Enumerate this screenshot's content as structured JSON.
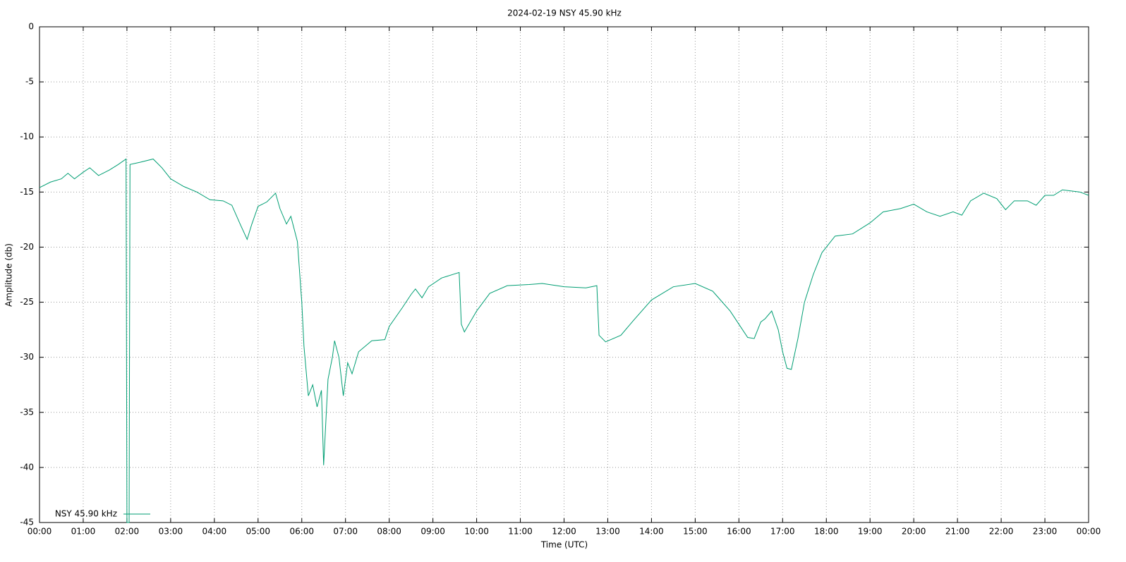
{
  "chart_data": {
    "type": "line",
    "title": "2024-02-19 NSY 45.90 kHz",
    "xlabel": "Time (UTC)",
    "ylabel": "Amplitude (db)",
    "x": [
      0.0,
      0.25,
      0.5,
      0.65,
      0.8,
      1.0,
      1.15,
      1.35,
      1.6,
      1.8,
      1.98,
      2.0,
      2.05,
      2.07,
      2.3,
      2.6,
      2.8,
      3.0,
      3.3,
      3.6,
      3.9,
      4.2,
      4.4,
      4.6,
      4.75,
      4.85,
      5.0,
      5.2,
      5.4,
      5.5,
      5.65,
      5.75,
      5.9,
      6.0,
      6.05,
      6.15,
      6.25,
      6.35,
      6.45,
      6.5,
      6.6,
      6.7,
      6.75,
      6.85,
      6.95,
      7.05,
      7.15,
      7.3,
      7.6,
      7.9,
      8.0,
      8.3,
      8.5,
      8.6,
      8.75,
      8.9,
      9.2,
      9.6,
      9.65,
      9.72,
      10.0,
      10.3,
      10.7,
      11.2,
      11.5,
      12.0,
      12.5,
      12.75,
      12.8,
      12.95,
      13.3,
      13.6,
      14.0,
      14.5,
      15.0,
      15.4,
      15.8,
      16.0,
      16.2,
      16.35,
      16.5,
      16.6,
      16.75,
      16.9,
      17.0,
      17.1,
      17.2,
      17.35,
      17.5,
      17.7,
      17.9,
      18.2,
      18.6,
      19.0,
      19.3,
      19.7,
      20.0,
      20.3,
      20.6,
      20.9,
      21.1,
      21.3,
      21.6,
      21.9,
      22.1,
      22.3,
      22.6,
      22.8,
      23.0,
      23.2,
      23.4,
      23.8,
      24.0
    ],
    "series": [
      {
        "name": "NSY 45.90 kHz",
        "color": "#009e73",
        "values": [
          -14.6,
          -14.1,
          -13.8,
          -13.3,
          -13.8,
          -13.2,
          -12.8,
          -13.5,
          -13.0,
          -12.5,
          -12.0,
          -45,
          -45,
          -12.5,
          -12.3,
          -12.0,
          -12.8,
          -13.8,
          -14.5,
          -15.0,
          -15.7,
          -15.8,
          -16.2,
          -18.0,
          -19.3,
          -18.0,
          -16.3,
          -15.9,
          -15.1,
          -16.5,
          -17.9,
          -17.2,
          -19.5,
          -25,
          -29,
          -33.5,
          -32.5,
          -34.5,
          -33,
          -39.8,
          -32,
          -30,
          -28.5,
          -30,
          -33.5,
          -30.5,
          -31.5,
          -29.5,
          -28.5,
          -28.4,
          -27.2,
          -25.5,
          -24.3,
          -23.8,
          -24.6,
          -23.6,
          -22.8,
          -22.3,
          -27.0,
          -27.7,
          -25.8,
          -24.2,
          -23.5,
          -23.4,
          -23.3,
          -23.6,
          -23.7,
          -23.5,
          -28.0,
          -28.6,
          -28.0,
          -26.6,
          -24.8,
          -23.6,
          -23.3,
          -24.0,
          -25.8,
          -27.0,
          -28.2,
          -28.3,
          -26.8,
          -26.5,
          -25.8,
          -27.5,
          -29.5,
          -31.0,
          -31.1,
          -28.3,
          -25.0,
          -22.5,
          -20.5,
          -19.0,
          -18.8,
          -17.8,
          -16.8,
          -16.5,
          -16.1,
          -16.8,
          -17.2,
          -16.8,
          -17.1,
          -15.8,
          -15.1,
          -15.6,
          -16.6,
          -15.8,
          -15.8,
          -16.2,
          -15.3,
          -15.3,
          -14.8,
          -15.0,
          -15.3
        ]
      }
    ],
    "xlim": [
      0,
      24
    ],
    "xticks": [
      {
        "value": 0,
        "label": "00:00"
      },
      {
        "value": 1,
        "label": "01:00"
      },
      {
        "value": 2,
        "label": "02:00"
      },
      {
        "value": 3,
        "label": "03:00"
      },
      {
        "value": 4,
        "label": "04:00"
      },
      {
        "value": 5,
        "label": "05:00"
      },
      {
        "value": 6,
        "label": "06:00"
      },
      {
        "value": 7,
        "label": "07:00"
      },
      {
        "value": 8,
        "label": "08:00"
      },
      {
        "value": 9,
        "label": "09:00"
      },
      {
        "value": 10,
        "label": "10:00"
      },
      {
        "value": 11,
        "label": "11:00"
      },
      {
        "value": 12,
        "label": "12:00"
      },
      {
        "value": 13,
        "label": "13:00"
      },
      {
        "value": 14,
        "label": "14:00"
      },
      {
        "value": 15,
        "label": "15:00"
      },
      {
        "value": 16,
        "label": "16:00"
      },
      {
        "value": 17,
        "label": "17:00"
      },
      {
        "value": 18,
        "label": "18:00"
      },
      {
        "value": 19,
        "label": "19:00"
      },
      {
        "value": 20,
        "label": "20:00"
      },
      {
        "value": 21,
        "label": "21:00"
      },
      {
        "value": 22,
        "label": "22:00"
      },
      {
        "value": 23,
        "label": "23:00"
      },
      {
        "value": 24,
        "label": "00:00"
      }
    ],
    "ylim": [
      -45,
      0
    ],
    "yticks": [
      -45,
      -40,
      -35,
      -30,
      -25,
      -20,
      -15,
      -10,
      -5,
      0
    ],
    "grid": true,
    "legend": "lower left"
  }
}
